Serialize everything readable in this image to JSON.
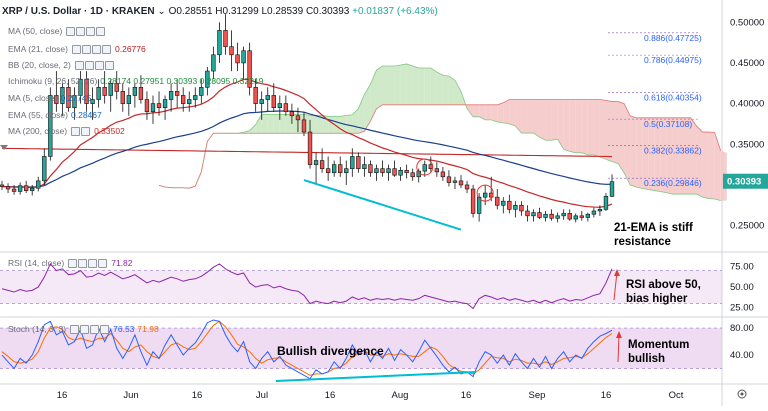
{
  "header": {
    "symbol": "XRP / U.S. Dollar · 1D · KRAKEN",
    "open": "O0.28551",
    "high": "H0.31299",
    "low": "L0.28539",
    "close": "C0.30393",
    "change": "+0.01837 (+6.43%)"
  },
  "indicators": [
    {
      "label": "MA (50, close)",
      "value": "",
      "color": "#e53935"
    },
    {
      "label": "EMA (21, close)",
      "value": "0.26776",
      "color": "#b71c1c"
    },
    {
      "label": "BB (20, close, 2)",
      "value": "",
      "color": "#1565c0"
    },
    {
      "label": "Ichimoku (9, 26, 52, 26)",
      "value": "0.28174  0.27951  0.30393  0.28095  0.32219",
      "color": "#1e8c3a"
    },
    {
      "label": "MA (5, close)",
      "value": "0.27745",
      "color": "#1565c0"
    },
    {
      "label": "EMA (55, close)",
      "value": "0.28467",
      "color": "#1565c0"
    },
    {
      "label": "MA (200, close)",
      "value": "0.33502",
      "color": "#c62828"
    }
  ],
  "rsi_label": {
    "title": "RSI (14, close)",
    "value": "71.82"
  },
  "stoch_label": {
    "title": "Stoch (14, 3, 3)",
    "k": "76.53",
    "d": "71.98"
  },
  "annotations": {
    "ema_resist_1": "21-EMA is stiff",
    "ema_resist_2": "resistance",
    "rsi_note_1": "RSI above 50,",
    "rsi_note_2": "bias higher",
    "bull_div": "Bullish divergence",
    "mom_1": "Momentum",
    "mom_2": "bullish"
  },
  "colors": {
    "up": "#26a69a",
    "down": "#ef5350",
    "candle": "#111111",
    "ema21": "#c62828",
    "ema55": "#1a3f8c",
    "ma200": "#c62828",
    "cloud_bear": "#f5c4c4",
    "cloud_bull": "#c8e6c0",
    "rsi": "#8e24aa",
    "stoch_k": "#2962ff",
    "stoch_d": "#ff6d00",
    "band": "#e1bee7",
    "annot_line": "#00bcd4",
    "price_label_bg": "#26a69a"
  },
  "chart_data": {
    "type": "candlestick",
    "title": "XRP / U.S. Dollar · 1D · KRAKEN",
    "price_axis": {
      "ticks": [
        "0.50000",
        "0.45000",
        "0.40000",
        "0.35000",
        "0.25000"
      ],
      "range": [
        0.22,
        0.52
      ]
    },
    "last_price": "0.30393",
    "x_labels": [
      "16",
      "Jun",
      "16",
      "Jul",
      "16",
      "Aug",
      "16",
      "Sep",
      "16",
      "Oct"
    ],
    "fibonacci": [
      {
        "level": "0.886",
        "price": "0.47725"
      },
      {
        "level": "0.786",
        "price": "0.44975"
      },
      {
        "level": "0.618",
        "price": "0.40354"
      },
      {
        "level": "0.5",
        "price": "0.37108"
      },
      {
        "level": "0.382",
        "price": "0.33862"
      },
      {
        "level": "0.236",
        "price": "0.29846"
      }
    ],
    "candles": [
      [
        0.3,
        0.305,
        0.294,
        0.298
      ],
      [
        0.298,
        0.302,
        0.29,
        0.295
      ],
      [
        0.295,
        0.3,
        0.288,
        0.292
      ],
      [
        0.292,
        0.303,
        0.288,
        0.299
      ],
      [
        0.299,
        0.305,
        0.29,
        0.293
      ],
      [
        0.293,
        0.3,
        0.287,
        0.296
      ],
      [
        0.296,
        0.31,
        0.292,
        0.305
      ],
      [
        0.305,
        0.345,
        0.3,
        0.335
      ],
      [
        0.335,
        0.42,
        0.33,
        0.41
      ],
      [
        0.41,
        0.44,
        0.39,
        0.4
      ],
      [
        0.4,
        0.425,
        0.385,
        0.42
      ],
      [
        0.42,
        0.43,
        0.39,
        0.395
      ],
      [
        0.395,
        0.42,
        0.38,
        0.41
      ],
      [
        0.41,
        0.44,
        0.4,
        0.43
      ],
      [
        0.43,
        0.44,
        0.39,
        0.4
      ],
      [
        0.4,
        0.42,
        0.38,
        0.405
      ],
      [
        0.405,
        0.43,
        0.395,
        0.42
      ],
      [
        0.42,
        0.44,
        0.4,
        0.41
      ],
      [
        0.41,
        0.43,
        0.39,
        0.425
      ],
      [
        0.425,
        0.44,
        0.405,
        0.415
      ],
      [
        0.415,
        0.425,
        0.39,
        0.4
      ],
      [
        0.4,
        0.42,
        0.385,
        0.41
      ],
      [
        0.41,
        0.425,
        0.395,
        0.42
      ],
      [
        0.42,
        0.435,
        0.4,
        0.405
      ],
      [
        0.405,
        0.415,
        0.38,
        0.39
      ],
      [
        0.39,
        0.41,
        0.375,
        0.4
      ],
      [
        0.4,
        0.415,
        0.385,
        0.395
      ],
      [
        0.395,
        0.41,
        0.38,
        0.405
      ],
      [
        0.405,
        0.425,
        0.39,
        0.415
      ],
      [
        0.415,
        0.43,
        0.395,
        0.41
      ],
      [
        0.41,
        0.42,
        0.39,
        0.4
      ],
      [
        0.4,
        0.415,
        0.39,
        0.405
      ],
      [
        0.405,
        0.42,
        0.395,
        0.41
      ],
      [
        0.41,
        0.43,
        0.4,
        0.42
      ],
      [
        0.42,
        0.445,
        0.41,
        0.44
      ],
      [
        0.44,
        0.47,
        0.43,
        0.46
      ],
      [
        0.46,
        0.5,
        0.45,
        0.49
      ],
      [
        0.49,
        0.51,
        0.46,
        0.47
      ],
      [
        0.47,
        0.49,
        0.44,
        0.46
      ],
      [
        0.46,
        0.475,
        0.44,
        0.45
      ],
      [
        0.45,
        0.47,
        0.43,
        0.465
      ],
      [
        0.465,
        0.475,
        0.41,
        0.42
      ],
      [
        0.42,
        0.43,
        0.39,
        0.4
      ],
      [
        0.4,
        0.415,
        0.38,
        0.405
      ],
      [
        0.405,
        0.42,
        0.39,
        0.41
      ],
      [
        0.41,
        0.425,
        0.39,
        0.395
      ],
      [
        0.395,
        0.41,
        0.38,
        0.4
      ],
      [
        0.4,
        0.41,
        0.385,
        0.39
      ],
      [
        0.39,
        0.4,
        0.375,
        0.385
      ],
      [
        0.385,
        0.395,
        0.365,
        0.38
      ],
      [
        0.38,
        0.39,
        0.36,
        0.365
      ],
      [
        0.365,
        0.38,
        0.32,
        0.325
      ],
      [
        0.325,
        0.34,
        0.3,
        0.33
      ],
      [
        0.33,
        0.345,
        0.315,
        0.32
      ],
      [
        0.32,
        0.335,
        0.305,
        0.315
      ],
      [
        0.315,
        0.33,
        0.31,
        0.325
      ],
      [
        0.325,
        0.335,
        0.31,
        0.315
      ],
      [
        0.315,
        0.33,
        0.3,
        0.32
      ],
      [
        0.32,
        0.345,
        0.31,
        0.335
      ],
      [
        0.335,
        0.34,
        0.315,
        0.32
      ],
      [
        0.32,
        0.335,
        0.31,
        0.325
      ],
      [
        0.325,
        0.33,
        0.31,
        0.315
      ],
      [
        0.315,
        0.325,
        0.305,
        0.32
      ],
      [
        0.32,
        0.33,
        0.31,
        0.315
      ],
      [
        0.315,
        0.325,
        0.305,
        0.32
      ],
      [
        0.32,
        0.33,
        0.31,
        0.312
      ],
      [
        0.312,
        0.322,
        0.305,
        0.318
      ],
      [
        0.318,
        0.325,
        0.308,
        0.315
      ],
      [
        0.315,
        0.32,
        0.305,
        0.31
      ],
      [
        0.31,
        0.32,
        0.303,
        0.317
      ],
      [
        0.317,
        0.33,
        0.31,
        0.325
      ],
      [
        0.325,
        0.335,
        0.315,
        0.32
      ],
      [
        0.32,
        0.328,
        0.31,
        0.316
      ],
      [
        0.316,
        0.322,
        0.305,
        0.31
      ],
      [
        0.31,
        0.318,
        0.298,
        0.303
      ],
      [
        0.303,
        0.31,
        0.295,
        0.305
      ],
      [
        0.305,
        0.312,
        0.296,
        0.3
      ],
      [
        0.3,
        0.305,
        0.29,
        0.295
      ],
      [
        0.295,
        0.3,
        0.26,
        0.265
      ],
      [
        0.265,
        0.29,
        0.255,
        0.285
      ],
      [
        0.285,
        0.3,
        0.275,
        0.29
      ],
      [
        0.29,
        0.31,
        0.28,
        0.285
      ],
      [
        0.285,
        0.295,
        0.27,
        0.275
      ],
      [
        0.275,
        0.285,
        0.265,
        0.28
      ],
      [
        0.28,
        0.288,
        0.265,
        0.27
      ],
      [
        0.27,
        0.28,
        0.26,
        0.275
      ],
      [
        0.275,
        0.28,
        0.262,
        0.268
      ],
      [
        0.268,
        0.275,
        0.255,
        0.262
      ],
      [
        0.262,
        0.27,
        0.255,
        0.266
      ],
      [
        0.266,
        0.272,
        0.258,
        0.26
      ],
      [
        0.26,
        0.268,
        0.255,
        0.264
      ],
      [
        0.264,
        0.27,
        0.256,
        0.259
      ],
      [
        0.259,
        0.266,
        0.254,
        0.262
      ],
      [
        0.262,
        0.27,
        0.257,
        0.265
      ],
      [
        0.265,
        0.27,
        0.256,
        0.258
      ],
      [
        0.258,
        0.265,
        0.254,
        0.262
      ],
      [
        0.262,
        0.268,
        0.256,
        0.26
      ],
      [
        0.26,
        0.266,
        0.255,
        0.264
      ],
      [
        0.264,
        0.272,
        0.26,
        0.268
      ],
      [
        0.268,
        0.275,
        0.262,
        0.27
      ],
      [
        0.27,
        0.29,
        0.268,
        0.286
      ],
      [
        0.286,
        0.313,
        0.285,
        0.304
      ]
    ],
    "rsi_axis": {
      "ticks": [
        "75.00",
        "50.00",
        "25.00"
      ],
      "range": [
        15,
        90
      ]
    },
    "rsi_band": [
      30,
      70
    ],
    "rsi": [
      48,
      46,
      44,
      47,
      45,
      46,
      50,
      62,
      78,
      70,
      72,
      65,
      66,
      70,
      62,
      63,
      67,
      64,
      68,
      64,
      60,
      62,
      65,
      60,
      55,
      58,
      56,
      59,
      62,
      60,
      57,
      59,
      60,
      63,
      68,
      74,
      78,
      72,
      68,
      65,
      67,
      55,
      50,
      52,
      53,
      49,
      51,
      48,
      46,
      45,
      40,
      30,
      33,
      31,
      30,
      33,
      31,
      33,
      38,
      35,
      37,
      34,
      36,
      35,
      36,
      34,
      36,
      35,
      34,
      36,
      40,
      38,
      36,
      34,
      32,
      33,
      31,
      30,
      24,
      36,
      40,
      38,
      35,
      37,
      34,
      36,
      34,
      32,
      34,
      31,
      34,
      31,
      34,
      36,
      33,
      35,
      34,
      37,
      40,
      42,
      55,
      72
    ],
    "stoch_axis": {
      "ticks": [
        "80.00",
        "40.00"
      ],
      "range": [
        0,
        95
      ]
    },
    "stoch_band": [
      20,
      80
    ],
    "stoch_k": [
      40,
      30,
      20,
      35,
      28,
      40,
      60,
      85,
      90,
      70,
      75,
      55,
      60,
      78,
      50,
      55,
      80,
      60,
      78,
      50,
      35,
      50,
      70,
      45,
      25,
      45,
      35,
      55,
      70,
      55,
      40,
      50,
      58,
      72,
      88,
      92,
      90,
      70,
      55,
      45,
      60,
      30,
      20,
      35,
      45,
      30,
      38,
      25,
      20,
      15,
      10,
      5,
      18,
      12,
      15,
      30,
      20,
      35,
      55,
      40,
      48,
      30,
      45,
      35,
      50,
      32,
      48,
      40,
      30,
      45,
      62,
      50,
      38,
      25,
      15,
      22,
      12,
      15,
      8,
      30,
      45,
      40,
      28,
      40,
      25,
      42,
      30,
      20,
      35,
      22,
      38,
      20,
      35,
      45,
      30,
      40,
      35,
      50,
      60,
      68,
      72,
      77
    ],
    "stoch_d": [
      45,
      38,
      30,
      28,
      30,
      34,
      45,
      65,
      80,
      82,
      78,
      66,
      62,
      65,
      62,
      60,
      65,
      65,
      72,
      62,
      50,
      45,
      52,
      55,
      45,
      38,
      35,
      45,
      55,
      58,
      52,
      48,
      50,
      60,
      72,
      84,
      90,
      82,
      70,
      56,
      52,
      45,
      35,
      28,
      33,
      35,
      36,
      30,
      25,
      20,
      15,
      10,
      12,
      12,
      15,
      20,
      22,
      28,
      38,
      43,
      47,
      40,
      40,
      38,
      42,
      40,
      42,
      40,
      38,
      38,
      45,
      52,
      48,
      38,
      26,
      20,
      16,
      15,
      12,
      18,
      28,
      38,
      36,
      35,
      30,
      34,
      32,
      28,
      28,
      26,
      30,
      26,
      30,
      35,
      36,
      38,
      36,
      42,
      50,
      58,
      66,
      72
    ]
  }
}
